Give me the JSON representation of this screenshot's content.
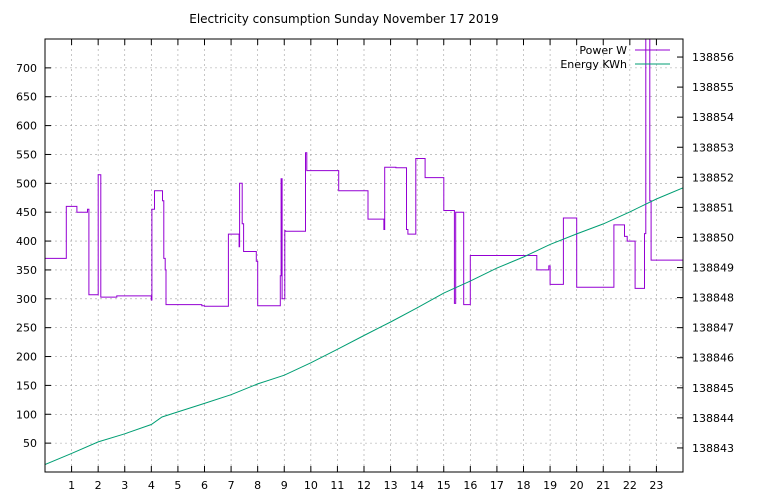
{
  "chart_data": {
    "type": "line",
    "title": "Electricity consumption Sunday November 17 2019",
    "xlabel": "",
    "ylabel": "",
    "y2label": "",
    "xlim": [
      0,
      24
    ],
    "ylim": [
      0,
      750
    ],
    "y2lim": [
      138842.2,
      138856.6
    ],
    "x_ticks": [
      1,
      2,
      3,
      4,
      5,
      6,
      7,
      8,
      9,
      10,
      11,
      12,
      13,
      14,
      15,
      16,
      17,
      18,
      19,
      20,
      21,
      22,
      23
    ],
    "y_ticks": [
      50,
      100,
      150,
      200,
      250,
      300,
      350,
      400,
      450,
      500,
      550,
      600,
      650,
      700
    ],
    "y2_ticks": [
      138843,
      138844,
      138845,
      138846,
      138847,
      138848,
      138849,
      138850,
      138851,
      138852,
      138853,
      138854,
      138855,
      138856
    ],
    "grid": true,
    "legend_position": "top-right",
    "colors": {
      "power": "#9400d3",
      "energy": "#009e73",
      "grid": "#a0a0a0"
    },
    "series": [
      {
        "name": "Power W",
        "axis": "left",
        "x": [
          0,
          0.8,
          0.8,
          1.2,
          1.2,
          1.6,
          1.6,
          1.65,
          1.65,
          2.0,
          2.0,
          2.1,
          2.1,
          2.15,
          2.15,
          2.7,
          2.7,
          4.0,
          4.0,
          4.02,
          4.02,
          4.12,
          4.12,
          4.42,
          4.42,
          4.47,
          4.47,
          4.52,
          4.52,
          4.55,
          4.55,
          5.9,
          5.9,
          6.0,
          6.0,
          6.9,
          6.9,
          7.3,
          7.3,
          7.32,
          7.32,
          7.42,
          7.42,
          7.47,
          7.47,
          7.95,
          7.95,
          8.0,
          8.0,
          8.85,
          8.85,
          8.88,
          8.88,
          8.92,
          8.92,
          9.02,
          9.02,
          9.05,
          9.05,
          9.8,
          9.8,
          9.85,
          9.85,
          10.0,
          10.0,
          11.05,
          11.05,
          12.15,
          12.15,
          12.75,
          12.75,
          12.78,
          12.78,
          13.2,
          13.2,
          13.6,
          13.6,
          13.65,
          13.65,
          13.95,
          13.95,
          14.3,
          14.3,
          15.0,
          15.0,
          15.4,
          15.4,
          15.45,
          15.45,
          15.75,
          15.75,
          16.0,
          16.0,
          17.0,
          17.0,
          18.5,
          18.5,
          18.95,
          18.95,
          19.0,
          19.0,
          19.5,
          19.5,
          20.0,
          20.0,
          21.05,
          21.05,
          21.4,
          21.4,
          21.8,
          21.8,
          21.9,
          21.9,
          22.2,
          22.2,
          22.55,
          22.55,
          22.6,
          22.6,
          22.75,
          22.75,
          22.8,
          22.8,
          24
        ],
        "y": [
          370,
          370,
          460,
          460,
          450,
          450,
          455,
          455,
          307,
          307,
          515,
          515,
          303,
          303,
          303,
          303,
          305,
          305,
          298,
          298,
          455,
          455,
          487,
          487,
          470,
          470,
          370,
          370,
          350,
          350,
          290,
          290,
          288,
          288,
          287,
          287,
          412,
          412,
          390,
          390,
          500,
          500,
          430,
          430,
          382,
          382,
          365,
          365,
          288,
          288,
          340,
          340,
          508,
          508,
          300,
          300,
          418,
          418,
          417,
          417,
          553,
          553,
          522,
          522,
          522,
          522,
          487,
          487,
          438,
          438,
          420,
          420,
          528,
          528,
          527,
          527,
          420,
          420,
          412,
          412,
          543,
          543,
          510,
          510,
          453,
          453,
          292,
          292,
          450,
          450,
          290,
          290,
          375,
          375,
          375,
          375,
          350,
          350,
          357,
          357,
          325,
          325,
          440,
          440,
          320,
          320,
          320,
          320,
          428,
          428,
          408,
          408,
          400,
          400,
          318,
          318,
          413,
          413,
          750,
          750,
          470,
          470,
          367,
          367
        ]
      },
      {
        "name": "Energy KWh",
        "axis": "right",
        "x": [
          0,
          1,
          2,
          3,
          4,
          4.4,
          5,
          6,
          7,
          8,
          9,
          10,
          11,
          12,
          13,
          14,
          15,
          16,
          17,
          18,
          19,
          20,
          21,
          22,
          23,
          24
        ],
        "y": [
          138842.45,
          138842.82,
          138843.2,
          138843.47,
          138843.78,
          138844.03,
          138844.2,
          138844.48,
          138844.77,
          138845.13,
          138845.42,
          138845.83,
          138846.28,
          138846.74,
          138847.19,
          138847.66,
          138848.15,
          138848.55,
          138848.98,
          138849.35,
          138849.77,
          138850.12,
          138850.45,
          138850.85,
          138851.28,
          138851.65
        ]
      }
    ]
  }
}
